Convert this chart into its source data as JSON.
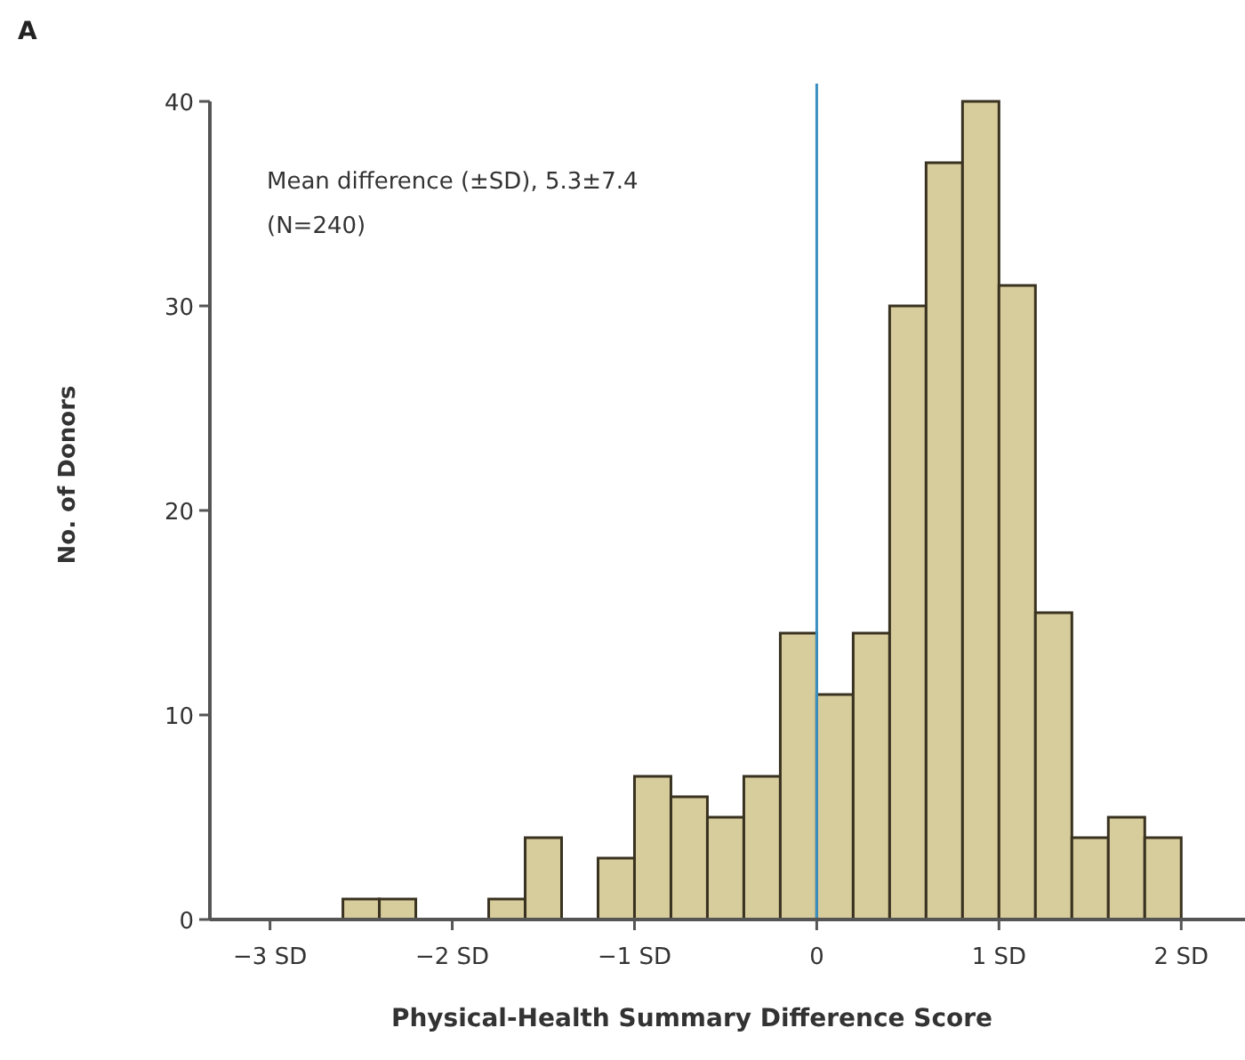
{
  "chart_data": {
    "type": "histogram",
    "xlabel": "Physical-Health Summary Difference Score",
    "ylabel": "No. of Donors",
    "annotations": [
      "A",
      "Mean difference (±SD), 5.3±7.4",
      "(N=240)"
    ],
    "bins": [
      -2.6,
      -2.4,
      -2.2,
      -2.0,
      -1.8,
      -1.6,
      -1.4,
      -1.2,
      -1.0,
      -0.8,
      -0.6,
      -0.4,
      -0.2,
      0,
      0.2,
      0.4,
      0.6,
      0.8,
      1.0,
      1.2,
      1.4,
      1.6,
      1.8,
      2.0
    ],
    "values": [
      1,
      1,
      0,
      0,
      1,
      4,
      0,
      3,
      7,
      6,
      5,
      7,
      14,
      11,
      14,
      30,
      37,
      40,
      31,
      15,
      4,
      5,
      4
    ],
    "color": "#d6cc9c",
    "xlim": [
      -3.33,
      2.35
    ],
    "ylim": [
      0,
      40
    ],
    "xticks": [
      {
        "value": -3,
        "label": "−3 SD"
      },
      {
        "value": -2,
        "label": "−2 SD"
      },
      {
        "value": -1,
        "label": "−1 SD"
      },
      0,
      {
        "value": 1,
        "label": "1 SD"
      },
      {
        "value": 2,
        "label": "2 SD"
      }
    ],
    "yticks": [
      0,
      10,
      20,
      30,
      40
    ],
    "ref_lines": [
      {
        "axis": "x",
        "value": 0,
        "color": "#3a8fc0"
      }
    ],
    "grid": false
  }
}
